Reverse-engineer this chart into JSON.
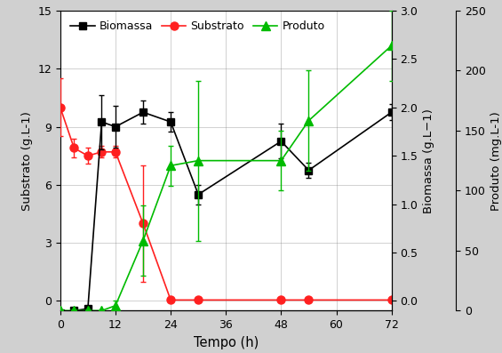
{
  "xlabel": "Tempo (h)",
  "ylabel_left": "Substrato (g.L-1)",
  "ylabel_mid": "Biomassa (g.L−1)",
  "ylabel_right": "Produto (mg.L-1)",
  "biomassa_x": [
    0,
    3,
    6,
    9,
    12,
    18,
    24,
    30,
    48,
    54,
    72
  ],
  "biomassa_y": [
    -0.12,
    -0.1,
    -0.08,
    1.85,
    1.8,
    1.95,
    1.85,
    1.1,
    1.65,
    1.35,
    1.95
  ],
  "biomassa_yerr": [
    0.0,
    0.0,
    0.0,
    0.28,
    0.22,
    0.12,
    0.1,
    0.1,
    0.18,
    0.08,
    0.08
  ],
  "substrato_x": [
    0,
    3,
    6,
    9,
    12,
    18,
    24,
    30,
    48,
    54,
    72
  ],
  "substrato_y": [
    10.0,
    7.9,
    7.5,
    7.7,
    7.7,
    4.0,
    0.05,
    0.05,
    0.05,
    0.05,
    0.05
  ],
  "substrato_yerr": [
    1.5,
    0.5,
    0.4,
    0.3,
    0.3,
    3.0,
    0.0,
    0.0,
    0.0,
    0.0,
    0.0
  ],
  "produto_x": [
    0,
    3,
    6,
    9,
    12,
    18,
    24,
    30,
    48,
    54,
    72
  ],
  "produto_y": [
    0.0,
    0.0,
    0.0,
    0.0,
    0.05,
    0.7,
    1.45,
    1.5,
    1.5,
    1.9,
    2.65
  ],
  "produto_yerr": [
    0.0,
    0.0,
    0.0,
    0.0,
    0.05,
    0.35,
    0.2,
    0.8,
    0.3,
    0.5,
    0.35
  ],
  "biomassa_color": "#000000",
  "substrato_color": "#ff2020",
  "produto_color": "#00bb00",
  "xlim": [
    0,
    72
  ],
  "ylim_left": [
    -0.5,
    15
  ],
  "ylim_biomassa": [
    -0.1,
    3.0
  ],
  "ylim_produto": [
    0,
    250
  ],
  "background_color": "#d0d0d0",
  "plot_bg_color": "#ffffff"
}
